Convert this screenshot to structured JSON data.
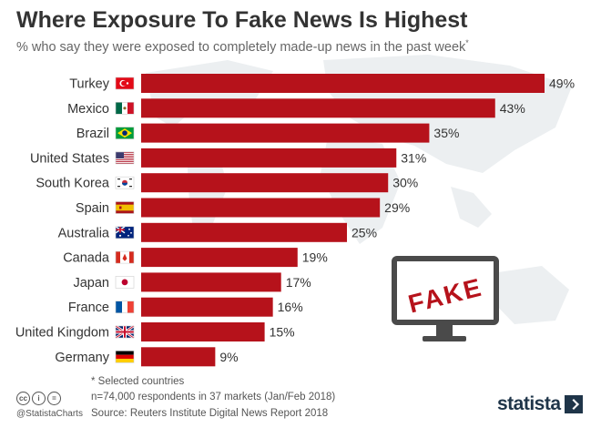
{
  "title": "Where Exposure To Fake News Is Highest",
  "subtitle": "% who say they were exposed to completely made-up news in the past week",
  "subtitle_marker": "*",
  "illustration_text": "FAKE",
  "footer": {
    "note": "* Selected countries",
    "sample": "n=74,000 respondents in 37 markets (Jan/Feb 2018)",
    "source": "Source: Reuters Institute Digital News Report 2018",
    "handle": "@StatistaCharts",
    "logo": "statista",
    "license_icons": [
      "cc",
      "i",
      "="
    ]
  },
  "colors": {
    "bar": "#b6121b",
    "title": "#333333",
    "map": "#eceff1"
  },
  "chart_data": {
    "type": "bar",
    "orientation": "horizontal",
    "categories": [
      "Turkey",
      "Mexico",
      "Brazil",
      "United States",
      "South Korea",
      "Spain",
      "Australia",
      "Canada",
      "Japan",
      "France",
      "United Kingdom",
      "Germany"
    ],
    "values": [
      49,
      43,
      35,
      31,
      30,
      29,
      25,
      19,
      17,
      16,
      15,
      9
    ],
    "value_suffix": "%",
    "flags": [
      "turkey-flag",
      "mexico-flag",
      "brazil-flag",
      "usa-flag",
      "south-korea-flag",
      "spain-flag",
      "australia-flag",
      "canada-flag",
      "japan-flag",
      "france-flag",
      "uk-flag",
      "germany-flag"
    ],
    "xlim": [
      0,
      49
    ],
    "grid": false,
    "title": "Where Exposure To Fake News Is Highest",
    "xlabel": "",
    "ylabel": ""
  }
}
